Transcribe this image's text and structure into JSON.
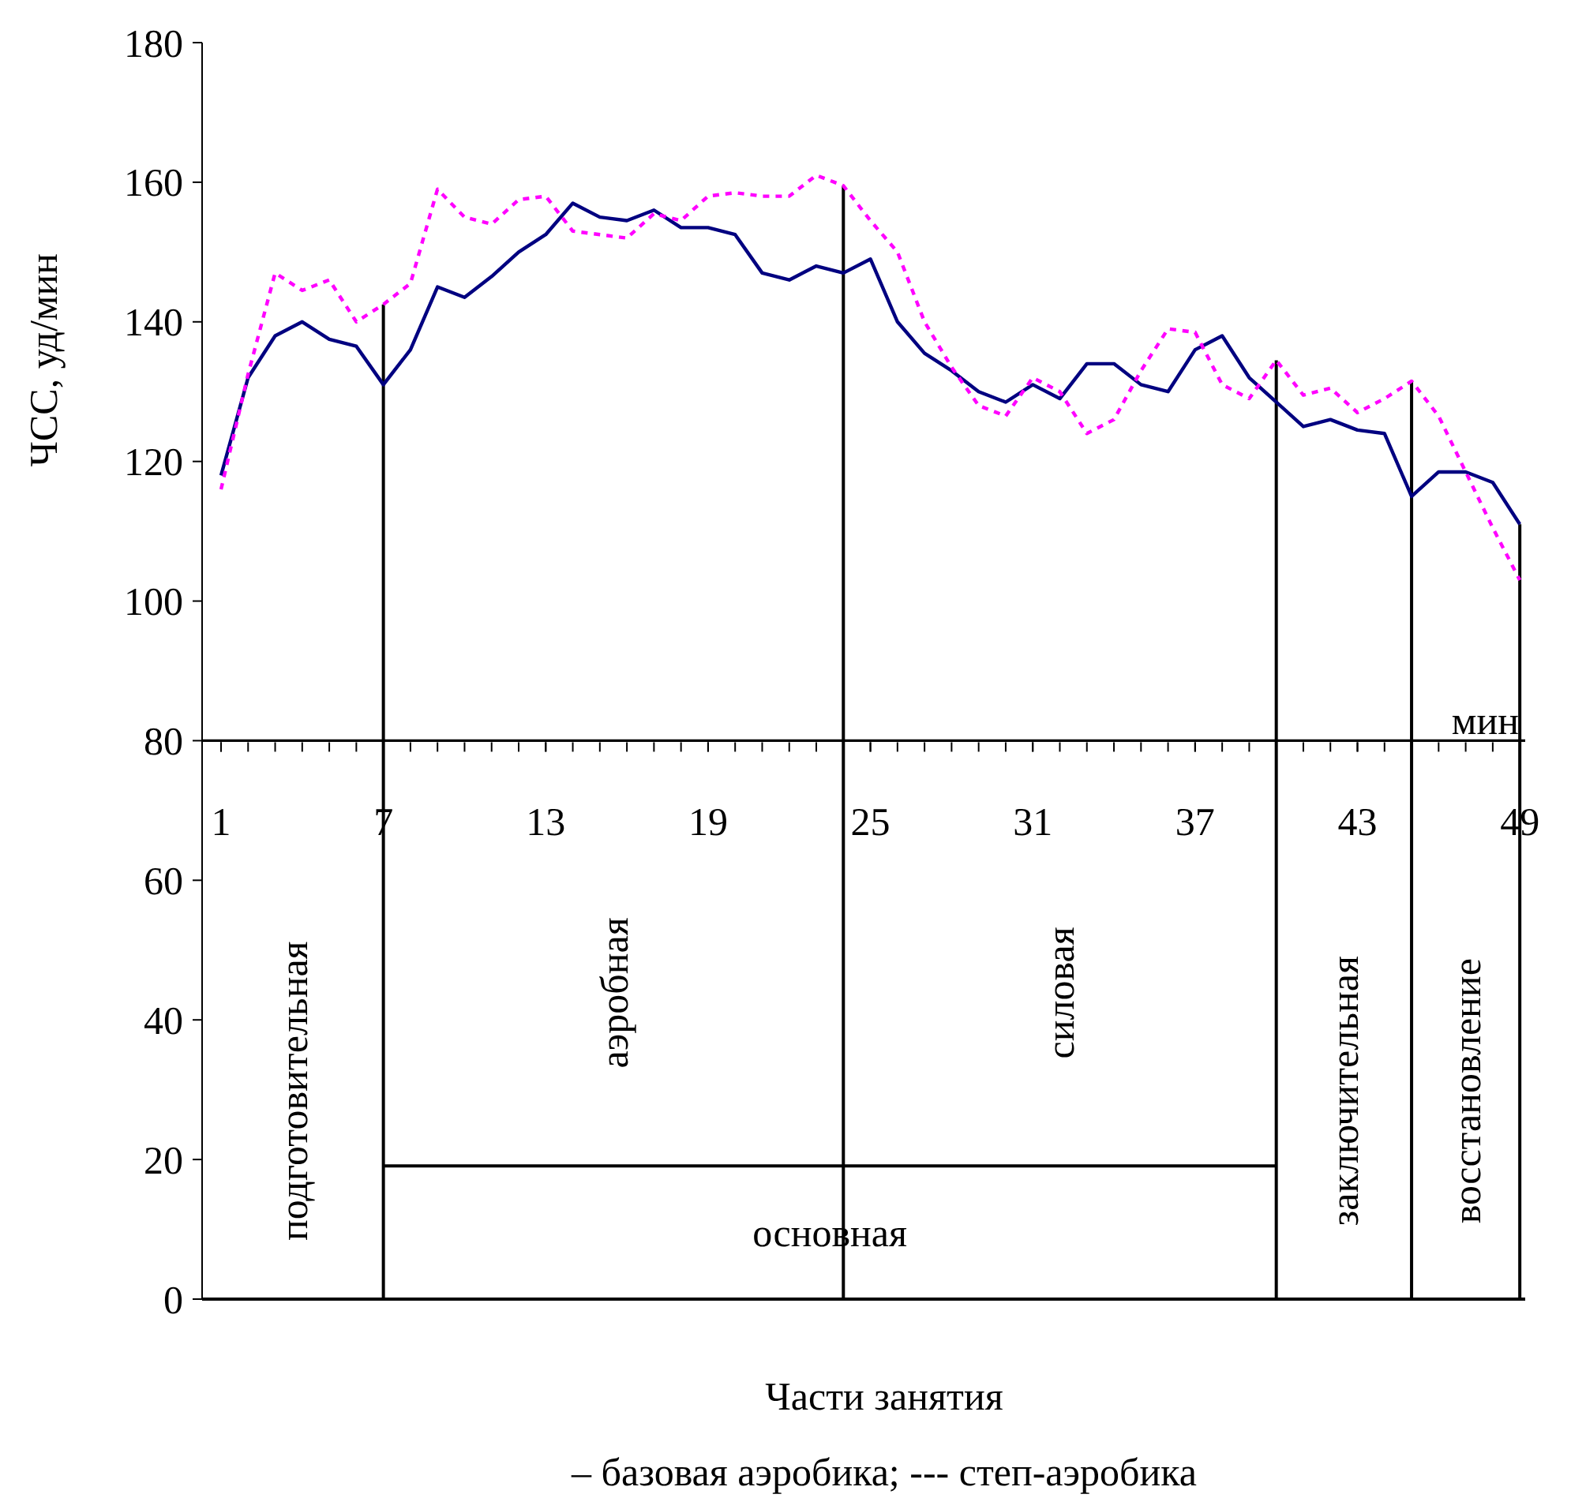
{
  "chart_data": {
    "type": "line",
    "xlabel": "мин",
    "ylabel": "ЧСС, уд/мин",
    "x": [
      1,
      2,
      3,
      4,
      5,
      6,
      7,
      8,
      9,
      10,
      11,
      12,
      13,
      14,
      15,
      16,
      17,
      18,
      19,
      20,
      21,
      22,
      23,
      24,
      25,
      26,
      27,
      28,
      29,
      30,
      31,
      32,
      33,
      34,
      35,
      36,
      37,
      38,
      39,
      40,
      41,
      42,
      43,
      44,
      45,
      46,
      47,
      48,
      49
    ],
    "series": [
      {
        "color": "#000080",
        "line_style": "solid",
        "values": [
          118,
          132,
          138,
          140,
          137.5,
          136.5,
          131,
          136,
          145,
          143.5,
          146.5,
          150,
          152.5,
          157,
          155,
          154.5,
          156,
          153.5,
          153.5,
          152.5,
          147,
          146,
          148,
          147,
          149,
          140,
          135.5,
          133,
          130,
          128.5,
          131,
          129,
          134,
          134,
          131,
          130,
          136,
          138,
          132,
          128.5,
          125,
          126,
          124.5,
          124,
          115,
          118.5,
          118.5,
          117,
          111
        ]
      },
      {
        "color": "#ff00ff",
        "line_style": "dashed",
        "values": [
          116,
          132.5,
          147,
          144.5,
          146,
          140,
          142.5,
          145.5,
          159,
          155,
          154,
          157.5,
          158,
          153,
          152.5,
          152,
          155.5,
          154.5,
          158,
          158.5,
          158,
          158,
          161,
          159.5,
          154.5,
          150,
          140,
          133.5,
          128,
          126.5,
          132,
          130,
          124,
          126,
          133,
          139,
          138.5,
          131,
          129,
          134.5,
          129.5,
          130.5,
          127,
          129,
          131.5,
          126.5,
          118.5,
          110.5,
          103
        ]
      }
    ],
    "xlim": [
      0.3,
      49.2
    ],
    "ylim": [
      0,
      180
    ],
    "xticks": [
      1,
      7,
      13,
      19,
      25,
      31,
      37,
      43,
      49
    ],
    "yticks": [
      0,
      20,
      40,
      60,
      80,
      100,
      120,
      140,
      160,
      180
    ],
    "ref_lines": [
      {
        "axis": "x",
        "value": 7
      },
      {
        "axis": "x",
        "value": 24
      },
      {
        "axis": "x",
        "value": 40
      },
      {
        "axis": "x",
        "value": 45
      },
      {
        "axis": "x",
        "value": 49
      }
    ],
    "annotations": [
      "подготовительная",
      "аэробная",
      "силовая",
      "заключительная",
      "восстановление",
      "основная",
      "Части занятия",
      "– базовая аэробика; --- степ-аэробика"
    ],
    "grid": false,
    "marker": "none"
  }
}
